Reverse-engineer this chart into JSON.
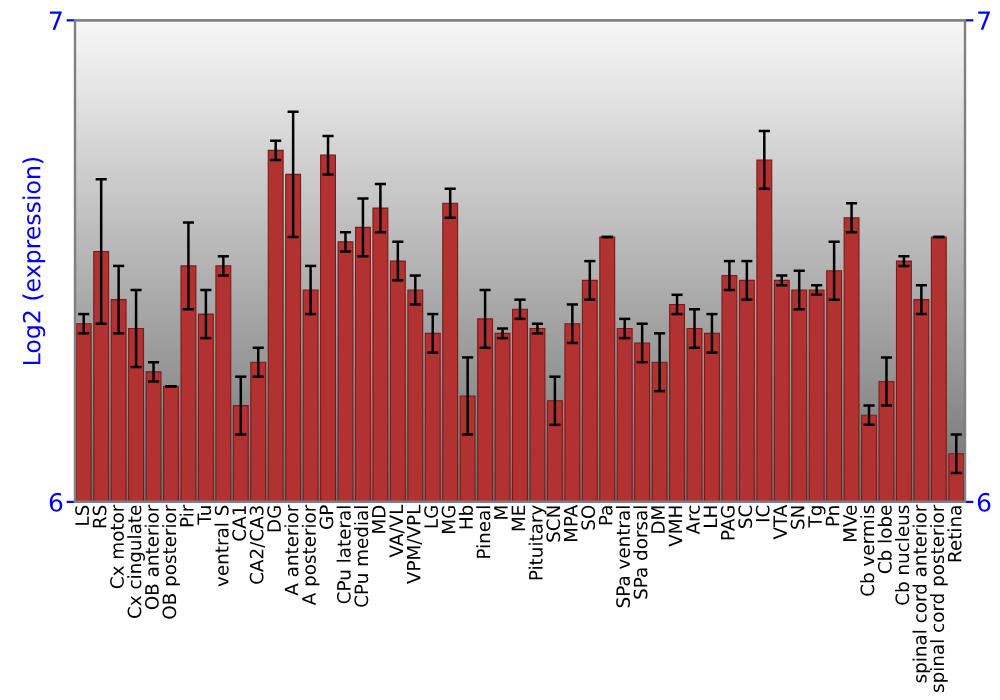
{
  "chart_data": {
    "type": "bar",
    "ylabel": "Log2 (expression)",
    "categories": [
      "LS",
      "RS",
      "Cx motor",
      "Cx cingulate",
      "OB anterior",
      "OB posterior",
      "Pir",
      "Tu",
      "ventral S",
      "CA1",
      "CA2/CA3",
      "DG",
      "A anterior",
      "A posterior",
      "GP",
      "CPu lateral",
      "CPu medial",
      "MD",
      "VA/VL",
      "VPM/VPL",
      "LG",
      "MG",
      "Hb",
      "Pineal",
      "M",
      "ME",
      "Pituitary",
      "SCN",
      "MPA",
      "SO",
      "Pa",
      "SPa ventral",
      "SPa dorsal",
      "DM",
      "VMH",
      "Arc",
      "LH",
      "PAG",
      "SC",
      "IC",
      "VTA",
      "SN",
      "Tg",
      "Pn",
      "MVe",
      "Cb vermis",
      "Cb lobe",
      "Cb nucleus",
      "spinal cord anterior",
      "spinal cord posterior",
      "Retina"
    ],
    "values": [
      6.37,
      6.52,
      6.42,
      6.36,
      6.27,
      6.24,
      6.49,
      6.39,
      6.49,
      6.2,
      6.29,
      6.73,
      6.68,
      6.44,
      6.72,
      6.54,
      6.57,
      6.61,
      6.5,
      6.44,
      6.35,
      6.62,
      6.22,
      6.38,
      6.35,
      6.4,
      6.36,
      6.21,
      6.37,
      6.46,
      6.55,
      6.36,
      6.33,
      6.29,
      6.41,
      6.36,
      6.35,
      6.47,
      6.46,
      6.71,
      6.46,
      6.44,
      6.44,
      6.48,
      6.59,
      6.18,
      6.25,
      6.5,
      6.42,
      6.55,
      6.1
    ],
    "errors": [
      0.02,
      0.15,
      0.07,
      0.08,
      0.02,
      0.0,
      0.09,
      0.05,
      0.02,
      0.06,
      0.03,
      0.02,
      0.13,
      0.05,
      0.04,
      0.02,
      0.06,
      0.05,
      0.04,
      0.03,
      0.04,
      0.03,
      0.08,
      0.06,
      0.01,
      0.02,
      0.01,
      0.05,
      0.04,
      0.04,
      0.0,
      0.02,
      0.04,
      0.06,
      0.02,
      0.04,
      0.04,
      0.03,
      0.04,
      0.06,
      0.01,
      0.04,
      0.01,
      0.06,
      0.03,
      0.02,
      0.05,
      0.01,
      0.03,
      0.0,
      0.04
    ],
    "color": "#b23232",
    "ylim": [
      6,
      7
    ],
    "yticks": [
      6,
      7
    ],
    "y2lim": [
      6,
      7
    ],
    "y2ticks": [
      6,
      7
    ],
    "grid": false,
    "legend": false
  }
}
